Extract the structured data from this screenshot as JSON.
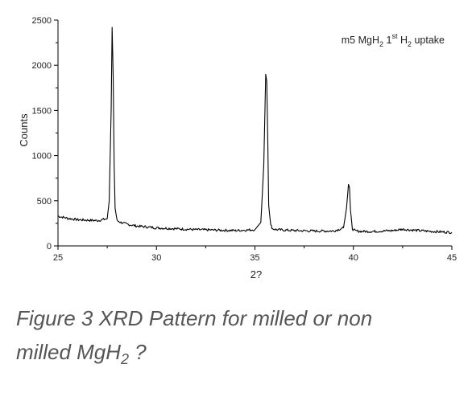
{
  "chart_data": {
    "type": "line",
    "xlabel": "2?",
    "ylabel": "Counts",
    "xlim": [
      25,
      45
    ],
    "ylim": [
      0,
      2500
    ],
    "x_ticks": [
      25,
      30,
      35,
      40,
      45
    ],
    "y_ticks": [
      0,
      500,
      1000,
      1500,
      2000,
      2500
    ],
    "grid": false,
    "legend_position": "top-right",
    "legend": {
      "prefix": "m5 MgH",
      "sub1": "2",
      "mid": " 1",
      "sup": "st",
      "mid2": " H",
      "sub2": "2",
      "suffix": " uptake"
    },
    "series": [
      {
        "name": "m5 MgH2 1st H2 uptake",
        "color": "#000000",
        "x": [
          25.0,
          25.5,
          26.0,
          26.5,
          27.0,
          27.5,
          27.6,
          27.7,
          27.75,
          27.8,
          27.85,
          27.9,
          28.0,
          28.2,
          28.5,
          29.0,
          30.0,
          31.0,
          32.0,
          33.0,
          34.0,
          35.0,
          35.3,
          35.45,
          35.55,
          35.6,
          35.65,
          35.7,
          35.8,
          35.9,
          36.1,
          36.5,
          37.0,
          38.0,
          39.0,
          39.5,
          39.65,
          39.75,
          39.8,
          39.85,
          39.95,
          40.1,
          40.5,
          41.0,
          42.0,
          42.5,
          43.0,
          44.0,
          45.0
        ],
        "y": [
          330,
          305,
          290,
          285,
          280,
          300,
          500,
          1500,
          2420,
          1900,
          900,
          420,
          280,
          260,
          240,
          220,
          200,
          190,
          180,
          175,
          170,
          180,
          260,
          900,
          1900,
          1820,
          1200,
          450,
          230,
          190,
          180,
          175,
          170,
          165,
          165,
          200,
          420,
          670,
          650,
          400,
          190,
          165,
          160,
          160,
          170,
          185,
          175,
          160,
          150
        ]
      }
    ]
  },
  "caption": {
    "line1": "Figure 3 XRD Pattern for milled or non",
    "line2_pre": "milled MgH",
    "line2_sub": "2",
    "line2_post": " ?"
  }
}
